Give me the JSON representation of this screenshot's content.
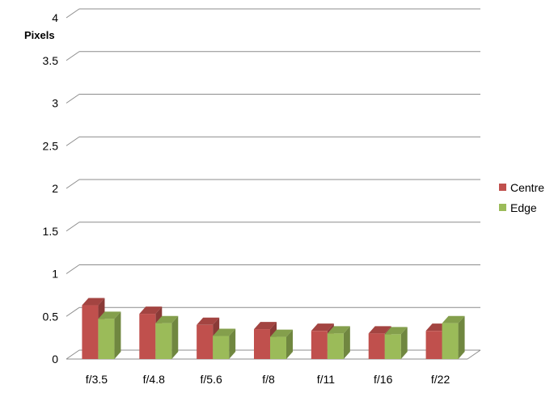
{
  "chart_data": {
    "type": "bar",
    "title": "",
    "xlabel": "",
    "ylabel": "Pixels",
    "ylim": [
      0,
      4
    ],
    "yticks": [
      "0",
      "0.5",
      "1",
      "1.5",
      "2",
      "2.5",
      "3",
      "3.5",
      "4"
    ],
    "categories": [
      "f/3.5",
      "f/4.8",
      "f/5.6",
      "f/8",
      "f/11",
      "f/16",
      "f/22"
    ],
    "series": [
      {
        "name": "Centre",
        "color": "#c0504d",
        "values": [
          0.63,
          0.53,
          0.4,
          0.35,
          0.33,
          0.3,
          0.33
        ]
      },
      {
        "name": "Edge",
        "color": "#9bbb59",
        "values": [
          0.47,
          0.42,
          0.27,
          0.26,
          0.3,
          0.29,
          0.42
        ]
      }
    ],
    "grid": true,
    "legend_position": "right",
    "style": "3d-clustered-column"
  }
}
